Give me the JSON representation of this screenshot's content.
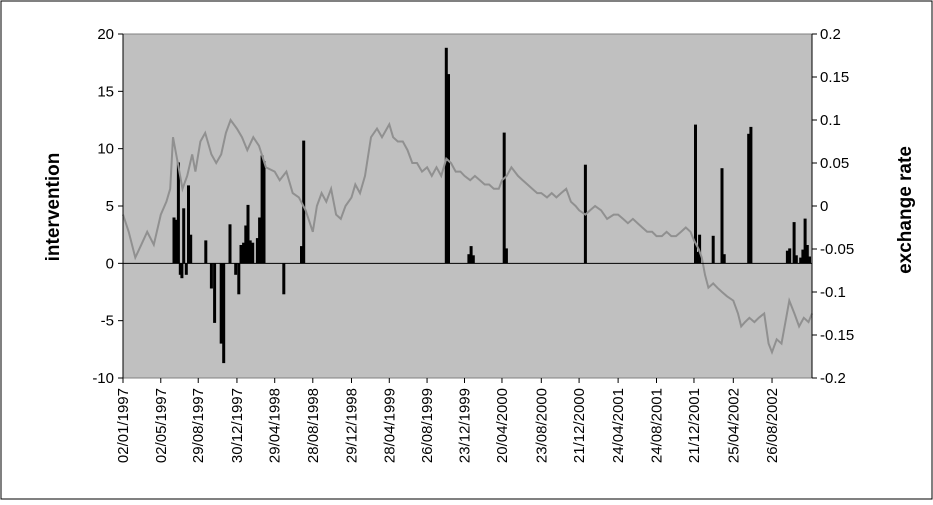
{
  "chart_data": {
    "type": "bar+line",
    "title": "",
    "ylabel_left": "intervention",
    "ylabel_right": "exchange rate",
    "ylim_left": [
      -10,
      20
    ],
    "ylim_right": [
      -0.2,
      0.2
    ],
    "yticks_left": [
      "20",
      "15",
      "10",
      "5",
      "0",
      "-5",
      "-10"
    ],
    "yticks_right": [
      "0.2",
      "0.15",
      "0.1",
      "0.05",
      "0",
      "-0.05",
      "-0.1",
      "-0.15",
      "-0.2"
    ],
    "x_range": [
      "1997-01-02",
      "2002-12-31"
    ],
    "x_ticks": [
      "02/01/1997",
      "02/05/1997",
      "29/08/1997",
      "30/12/1997",
      "29/04/1998",
      "28/08/1998",
      "29/12/1998",
      "28/04/1999",
      "26/08/1999",
      "23/12/1999",
      "20/04/2000",
      "23/08/2000",
      "21/12/2000",
      "24/04/2001",
      "24/08/2001",
      "21/12/2001",
      "25/04/2002",
      "26/08/2002"
    ],
    "x_tick_dates": [
      "1997-01-02",
      "1997-05-02",
      "1997-08-29",
      "1997-12-30",
      "1998-04-29",
      "1998-08-28",
      "1998-12-29",
      "1999-04-28",
      "1999-08-26",
      "1999-12-23",
      "2000-04-20",
      "2000-08-23",
      "2000-12-21",
      "2001-04-24",
      "2001-08-24",
      "2001-12-21",
      "2002-04-25",
      "2002-08-26"
    ],
    "plot_background": "#c0c0c0",
    "series": [
      {
        "name": "intervention",
        "kind": "bar",
        "axis": "left",
        "color": "#000000",
        "points": [
          [
            "1997-06-13",
            4.0
          ],
          [
            "1997-06-20",
            3.8
          ],
          [
            "1997-06-27",
            8.8
          ],
          [
            "1997-07-03",
            -1.0
          ],
          [
            "1997-07-08",
            -1.3
          ],
          [
            "1997-07-14",
            4.8
          ],
          [
            "1997-07-22",
            -1.0
          ],
          [
            "1997-07-29",
            6.8
          ],
          [
            "1997-08-05",
            2.5
          ],
          [
            "1997-09-22",
            2.0
          ],
          [
            "1997-10-10",
            -2.2
          ],
          [
            "1997-10-20",
            -5.2
          ],
          [
            "1997-11-10",
            -7.0
          ],
          [
            "1997-11-18",
            -8.7
          ],
          [
            "1997-12-08",
            3.4
          ],
          [
            "1997-12-26",
            -1.0
          ],
          [
            "1998-01-05",
            -2.7
          ],
          [
            "1998-01-12",
            1.6
          ],
          [
            "1998-01-20",
            1.8
          ],
          [
            "1998-01-27",
            3.3
          ],
          [
            "1998-02-03",
            5.1
          ],
          [
            "1998-02-10",
            2.0
          ],
          [
            "1998-02-18",
            1.8
          ],
          [
            "1998-03-05",
            2.2
          ],
          [
            "1998-03-12",
            4.0
          ],
          [
            "1998-03-20",
            9.4
          ],
          [
            "1998-03-26",
            8.9
          ],
          [
            "1998-05-28",
            -2.7
          ],
          [
            "1998-07-23",
            1.5
          ],
          [
            "1998-07-30",
            10.7
          ],
          [
            "1999-10-26",
            18.8
          ],
          [
            "1999-11-02",
            16.5
          ],
          [
            "2000-01-06",
            0.8
          ],
          [
            "2000-01-13",
            1.5
          ],
          [
            "2000-01-20",
            0.7
          ],
          [
            "2000-04-27",
            11.4
          ],
          [
            "2000-05-04",
            1.3
          ],
          [
            "2001-01-10",
            8.6
          ],
          [
            "2001-12-26",
            12.1
          ],
          [
            "2002-01-02",
            1.0
          ],
          [
            "2002-01-08",
            2.5
          ],
          [
            "2002-02-20",
            2.4
          ],
          [
            "2002-03-20",
            8.3
          ],
          [
            "2002-03-27",
            0.8
          ],
          [
            "2002-06-13",
            11.3
          ],
          [
            "2002-06-20",
            11.9
          ],
          [
            "2002-10-14",
            1.1
          ],
          [
            "2002-10-21",
            1.3
          ],
          [
            "2002-11-04",
            3.6
          ],
          [
            "2002-11-11",
            0.7
          ],
          [
            "2002-11-25",
            0.5
          ],
          [
            "2002-12-02",
            1.2
          ],
          [
            "2002-12-09",
            3.9
          ],
          [
            "2002-12-16",
            1.6
          ],
          [
            "2002-12-23",
            0.6
          ]
        ]
      },
      {
        "name": "exchange rate",
        "kind": "line",
        "axis": "right",
        "color": "#909090",
        "points": [
          [
            "1997-01-02",
            -0.01
          ],
          [
            "1997-01-20",
            -0.03
          ],
          [
            "1997-02-10",
            -0.06
          ],
          [
            "1997-03-01",
            -0.045
          ],
          [
            "1997-03-20",
            -0.03
          ],
          [
            "1997-04-10",
            -0.045
          ],
          [
            "1997-05-02",
            -0.01
          ],
          [
            "1997-05-20",
            0.005
          ],
          [
            "1997-06-01",
            0.02
          ],
          [
            "1997-06-10",
            0.08
          ],
          [
            "1997-06-25",
            0.05
          ],
          [
            "1997-07-10",
            0.02
          ],
          [
            "1997-07-25",
            0.035
          ],
          [
            "1997-08-10",
            0.06
          ],
          [
            "1997-08-20",
            0.04
          ],
          [
            "1997-09-05",
            0.075
          ],
          [
            "1997-09-20",
            0.085
          ],
          [
            "1997-10-10",
            0.06
          ],
          [
            "1997-10-25",
            0.05
          ],
          [
            "1997-11-10",
            0.06
          ],
          [
            "1997-11-25",
            0.085
          ],
          [
            "1997-12-10",
            0.1
          ],
          [
            "1997-12-30",
            0.09
          ],
          [
            "1998-01-15",
            0.08
          ],
          [
            "1998-02-01",
            0.065
          ],
          [
            "1998-02-20",
            0.08
          ],
          [
            "1998-03-10",
            0.07
          ],
          [
            "1998-04-01",
            0.045
          ],
          [
            "1998-04-29",
            0.04
          ],
          [
            "1998-05-15",
            0.03
          ],
          [
            "1998-06-05",
            0.04
          ],
          [
            "1998-06-25",
            0.015
          ],
          [
            "1998-07-15",
            0.01
          ],
          [
            "1998-08-05",
            -0.005
          ],
          [
            "1998-08-28",
            -0.03
          ],
          [
            "1998-09-10",
            0.0
          ],
          [
            "1998-09-25",
            0.015
          ],
          [
            "1998-10-10",
            0.005
          ],
          [
            "1998-10-25",
            0.02
          ],
          [
            "1998-11-10",
            -0.01
          ],
          [
            "1998-11-25",
            -0.015
          ],
          [
            "1998-12-10",
            0.0
          ],
          [
            "1998-12-29",
            0.01
          ],
          [
            "1999-01-10",
            0.025
          ],
          [
            "1999-01-25",
            0.015
          ],
          [
            "1999-02-10",
            0.035
          ],
          [
            "1999-03-01",
            0.08
          ],
          [
            "1999-03-20",
            0.09
          ],
          [
            "1999-04-05",
            0.08
          ],
          [
            "1999-04-28",
            0.095
          ],
          [
            "1999-05-10",
            0.08
          ],
          [
            "1999-05-25",
            0.075
          ],
          [
            "1999-06-10",
            0.075
          ],
          [
            "1999-06-25",
            0.065
          ],
          [
            "1999-07-10",
            0.05
          ],
          [
            "1999-07-25",
            0.05
          ],
          [
            "1999-08-10",
            0.04
          ],
          [
            "1999-08-26",
            0.045
          ],
          [
            "1999-09-10",
            0.035
          ],
          [
            "1999-09-25",
            0.045
          ],
          [
            "1999-10-10",
            0.035
          ],
          [
            "1999-10-26",
            0.055
          ],
          [
            "1999-11-10",
            0.05
          ],
          [
            "1999-11-25",
            0.04
          ],
          [
            "1999-12-10",
            0.04
          ],
          [
            "1999-12-23",
            0.035
          ],
          [
            "2000-01-10",
            0.03
          ],
          [
            "2000-01-25",
            0.035
          ],
          [
            "2000-02-10",
            0.03
          ],
          [
            "2000-02-25",
            0.025
          ],
          [
            "2000-03-10",
            0.025
          ],
          [
            "2000-03-25",
            0.02
          ],
          [
            "2000-04-10",
            0.02
          ],
          [
            "2000-04-20",
            0.03
          ],
          [
            "2000-05-05",
            0.035
          ],
          [
            "2000-05-20",
            0.045
          ],
          [
            "2000-06-10",
            0.035
          ],
          [
            "2000-06-25",
            0.03
          ],
          [
            "2000-07-10",
            0.025
          ],
          [
            "2000-07-25",
            0.02
          ],
          [
            "2000-08-10",
            0.015
          ],
          [
            "2000-08-23",
            0.015
          ],
          [
            "2000-09-10",
            0.01
          ],
          [
            "2000-09-25",
            0.015
          ],
          [
            "2000-10-10",
            0.01
          ],
          [
            "2000-10-25",
            0.015
          ],
          [
            "2000-11-10",
            0.02
          ],
          [
            "2000-11-25",
            0.005
          ],
          [
            "2000-12-10",
            0.0
          ],
          [
            "2000-12-21",
            -0.005
          ],
          [
            "2001-01-10",
            -0.01
          ],
          [
            "2001-01-25",
            -0.005
          ],
          [
            "2001-02-10",
            0.0
          ],
          [
            "2001-03-01",
            -0.005
          ],
          [
            "2001-03-20",
            -0.015
          ],
          [
            "2001-04-10",
            -0.01
          ],
          [
            "2001-04-24",
            -0.01
          ],
          [
            "2001-05-10",
            -0.015
          ],
          [
            "2001-05-25",
            -0.02
          ],
          [
            "2001-06-10",
            -0.015
          ],
          [
            "2001-06-25",
            -0.02
          ],
          [
            "2001-07-10",
            -0.025
          ],
          [
            "2001-07-25",
            -0.03
          ],
          [
            "2001-08-10",
            -0.03
          ],
          [
            "2001-08-24",
            -0.035
          ],
          [
            "2001-09-10",
            -0.035
          ],
          [
            "2001-09-25",
            -0.03
          ],
          [
            "2001-10-10",
            -0.035
          ],
          [
            "2001-10-25",
            -0.035
          ],
          [
            "2001-11-10",
            -0.03
          ],
          [
            "2001-11-25",
            -0.025
          ],
          [
            "2001-12-10",
            -0.03
          ],
          [
            "2001-12-21",
            -0.04
          ],
          [
            "2002-01-05",
            -0.05
          ],
          [
            "2002-01-15",
            -0.06
          ],
          [
            "2002-01-25",
            -0.08
          ],
          [
            "2002-02-05",
            -0.095
          ],
          [
            "2002-02-20",
            -0.09
          ],
          [
            "2002-03-05",
            -0.095
          ],
          [
            "2002-03-20",
            -0.1
          ],
          [
            "2002-04-05",
            -0.105
          ],
          [
            "2002-04-25",
            -0.11
          ],
          [
            "2002-05-10",
            -0.125
          ],
          [
            "2002-05-20",
            -0.14
          ],
          [
            "2002-06-01",
            -0.135
          ],
          [
            "2002-06-15",
            -0.13
          ],
          [
            "2002-07-01",
            -0.135
          ],
          [
            "2002-07-15",
            -0.13
          ],
          [
            "2002-08-01",
            -0.125
          ],
          [
            "2002-08-15",
            -0.16
          ],
          [
            "2002-08-26",
            -0.17
          ],
          [
            "2002-09-10",
            -0.155
          ],
          [
            "2002-09-25",
            -0.16
          ],
          [
            "2002-10-10",
            -0.13
          ],
          [
            "2002-10-20",
            -0.11
          ],
          [
            "2002-11-05",
            -0.125
          ],
          [
            "2002-11-20",
            -0.14
          ],
          [
            "2002-12-05",
            -0.13
          ],
          [
            "2002-12-20",
            -0.135
          ],
          [
            "2002-12-31",
            -0.125
          ]
        ]
      }
    ]
  }
}
